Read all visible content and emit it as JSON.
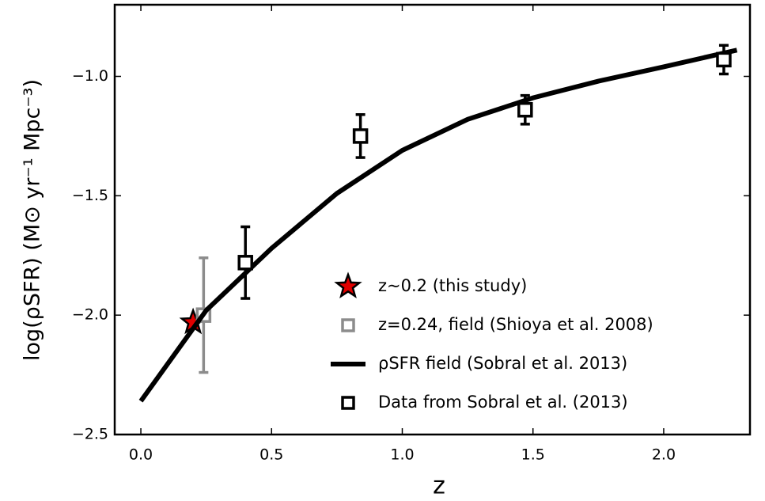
{
  "chart_data": {
    "type": "scatter",
    "xlabel": "z",
    "ylabel": "log(ρSFR) (M⊙ yr⁻¹ Mpc⁻³)",
    "xlim": [
      -0.1,
      2.33
    ],
    "ylim": [
      -2.5,
      -0.7
    ],
    "xticks": [
      {
        "value": 0.0,
        "label": "0.0"
      },
      0.5,
      {
        "value": 1.0,
        "label": "1.0"
      },
      1.5,
      {
        "value": 2.0,
        "label": "2.0"
      }
    ],
    "yticks": [
      {
        "value": -2.5,
        "label": "−2.5"
      },
      {
        "value": -2.0,
        "label": "−2.0"
      },
      {
        "value": -1.5,
        "label": "−1.5"
      },
      {
        "value": -1.0,
        "label": "−1.0"
      }
    ],
    "legend": "lower right",
    "series": [
      {
        "type": "star",
        "name": "z~0.2 (this study)",
        "color": "#e00000",
        "x": [
          0.2
        ],
        "values": [
          -2.03
        ]
      },
      {
        "type": "errorbar",
        "name": "z=0.24, field (Shioya et al. 2008)",
        "color": "#8c8c8c",
        "x": [
          0.24
        ],
        "values": [
          -2.0
        ],
        "errors": [
          0.24
        ]
      },
      {
        "type": "line",
        "name": "ρSFR field (Sobral et al. 2013)",
        "color": "#000000",
        "x": [
          0,
          0.25,
          0.5,
          0.75,
          1.0,
          1.25,
          1.5,
          1.75,
          2.0,
          2.28
        ],
        "values": [
          -2.36,
          -1.98,
          -1.72,
          -1.49,
          -1.31,
          -1.18,
          -1.09,
          -1.02,
          -0.96,
          -0.89
        ]
      },
      {
        "type": "errorbar",
        "name": "Data from Sobral et al. (2013)",
        "color": "#000000",
        "x": [
          0.4,
          0.84,
          1.47,
          2.23
        ],
        "values": [
          -1.78,
          -1.25,
          -1.14,
          -0.93
        ],
        "errors": [
          0.15,
          0.09,
          0.06,
          0.06
        ]
      }
    ]
  }
}
